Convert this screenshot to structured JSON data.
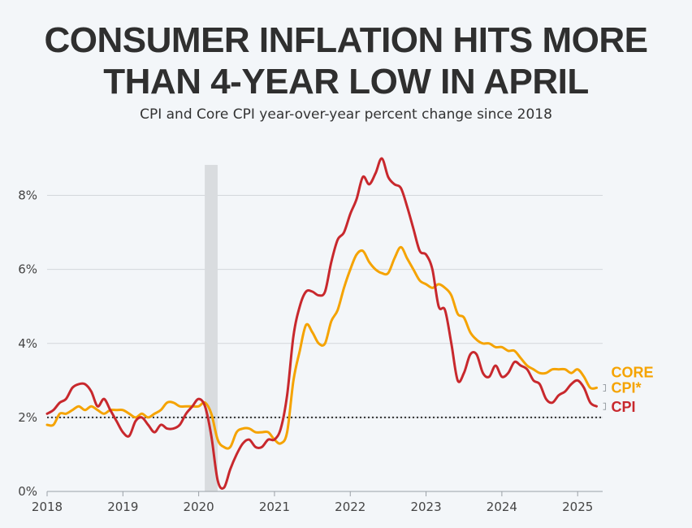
{
  "header": {
    "title_line1": "CONSUMER INFLATION HITS MORE",
    "title_line2": "THAN 4-YEAR LOW IN APRIL",
    "subtitle": "CPI and Core CPI year-over-year percent change since 2018"
  },
  "chart_data": {
    "type": "line",
    "title": "CONSUMER INFLATION HITS MORE THAN 4-YEAR LOW IN APRIL",
    "subtitle": "CPI and Core CPI year-over-year percent change since 2018",
    "xlabel": "",
    "ylabel": "",
    "xlim": [
      2018,
      2025.33
    ],
    "ylim": [
      0,
      9
    ],
    "x_ticks": [
      "2018",
      "2019",
      "2020",
      "2021",
      "2022",
      "2023",
      "2024",
      "2025"
    ],
    "y_ticks": [
      "0%",
      "2%",
      "4%",
      "6%",
      "8%"
    ],
    "y_tick_values": [
      0,
      2,
      4,
      6,
      8
    ],
    "reference_line": {
      "value": 2,
      "style": "dotted"
    },
    "recession_band": {
      "start": 2020.08,
      "end": 2020.25
    },
    "grid": "horizontal",
    "colors": {
      "cpi": "#c8282d",
      "core": "#f5a300",
      "reference": "#333333",
      "band": "#d9dcdf"
    },
    "series": [
      {
        "name": "CPI",
        "label_lines": [
          "CPI"
        ],
        "color": "#c8282d",
        "start_year": 2018,
        "values": [
          2.1,
          2.2,
          2.4,
          2.5,
          2.8,
          2.9,
          2.9,
          2.7,
          2.3,
          2.5,
          2.2,
          1.9,
          1.6,
          1.5,
          1.9,
          2.0,
          1.8,
          1.6,
          1.8,
          1.7,
          1.7,
          1.8,
          2.1,
          2.3,
          2.5,
          2.3,
          1.5,
          0.3,
          0.1,
          0.6,
          1.0,
          1.3,
          1.4,
          1.2,
          1.2,
          1.4,
          1.4,
          1.7,
          2.6,
          4.2,
          5.0,
          5.4,
          5.4,
          5.3,
          5.4,
          6.2,
          6.8,
          7.0,
          7.5,
          7.9,
          8.5,
          8.3,
          8.6,
          9.0,
          8.5,
          8.3,
          8.2,
          7.7,
          7.1,
          6.5,
          6.4,
          6.0,
          5.0,
          4.9,
          4.0,
          3.0,
          3.2,
          3.7,
          3.7,
          3.2,
          3.1,
          3.4,
          3.1,
          3.2,
          3.5,
          3.4,
          3.3,
          3.0,
          2.9,
          2.5,
          2.4,
          2.6,
          2.7,
          2.9,
          3.0,
          2.8,
          2.4,
          2.3
        ]
      },
      {
        "name": "CORE CPI*",
        "label_lines": [
          "CORE",
          "CPI*"
        ],
        "color": "#f5a300",
        "start_year": 2018,
        "values": [
          1.8,
          1.8,
          2.1,
          2.1,
          2.2,
          2.3,
          2.2,
          2.3,
          2.2,
          2.1,
          2.2,
          2.2,
          2.2,
          2.1,
          2.0,
          2.1,
          2.0,
          2.1,
          2.2,
          2.4,
          2.4,
          2.3,
          2.3,
          2.3,
          2.3,
          2.4,
          2.1,
          1.4,
          1.2,
          1.2,
          1.6,
          1.7,
          1.7,
          1.6,
          1.6,
          1.6,
          1.4,
          1.3,
          1.6,
          3.0,
          3.8,
          4.5,
          4.3,
          4.0,
          4.0,
          4.6,
          4.9,
          5.5,
          6.0,
          6.4,
          6.5,
          6.2,
          6.0,
          5.9,
          5.9,
          6.3,
          6.6,
          6.3,
          6.0,
          5.7,
          5.6,
          5.5,
          5.6,
          5.5,
          5.3,
          4.8,
          4.7,
          4.3,
          4.1,
          4.0,
          4.0,
          3.9,
          3.9,
          3.8,
          3.8,
          3.6,
          3.4,
          3.3,
          3.2,
          3.2,
          3.3,
          3.3,
          3.3,
          3.2,
          3.3,
          3.1,
          2.8,
          2.8
        ]
      }
    ]
  }
}
